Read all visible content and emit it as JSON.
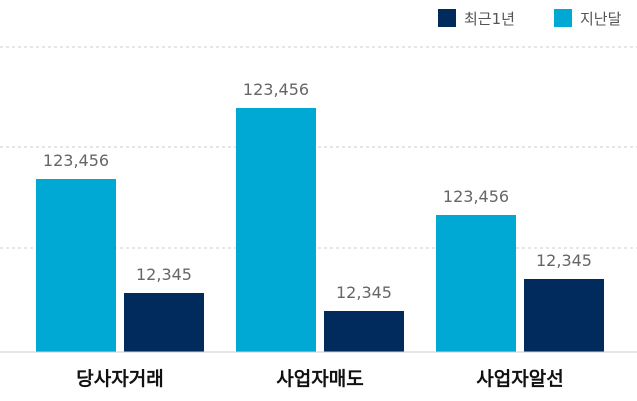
{
  "chart_data": {
    "type": "bar",
    "categories": [
      "당사자거래",
      "사업자매도",
      "사업자알선"
    ],
    "series": [
      {
        "name": "지난달",
        "color": "#00A9D4",
        "values": [
          173,
          244,
          137
        ],
        "labels": [
          "123,456",
          "123,456",
          "123,456"
        ]
      },
      {
        "name": "최근1년",
        "color": "#002B5C",
        "values": [
          59,
          41,
          73
        ],
        "labels": [
          "12,345",
          "12,345",
          "12,345"
        ]
      }
    ],
    "ylim": [
      0,
      305
    ],
    "grid": true,
    "legend_position": "top-right",
    "title": "",
    "xlabel": "",
    "ylabel": ""
  }
}
